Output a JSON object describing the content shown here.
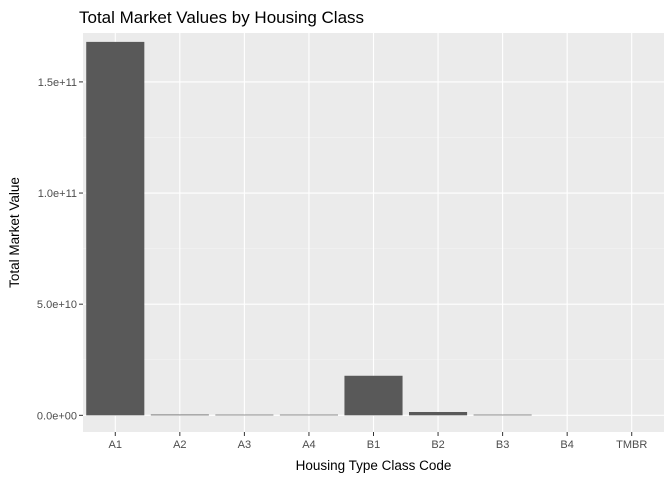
{
  "chart_data": {
    "type": "bar",
    "title": "Total Market Values by Housing Class",
    "xlabel": "Housing Type Class Code",
    "ylabel": "Total Market Value",
    "categories": [
      "A1",
      "A2",
      "A3",
      "A4",
      "B1",
      "B2",
      "B3",
      "B4",
      "TMBR"
    ],
    "values": [
      168000000000,
      350000000,
      300000000,
      300000000,
      17800000000,
      1500000000,
      300000000,
      0,
      0
    ],
    "ylim": [
      -7500000000,
      172000000000
    ],
    "yticks": [
      0,
      50000000000,
      100000000000,
      150000000000
    ],
    "ytick_labels": [
      "0.0e+00",
      "5.0e+10",
      "1.0e+11",
      "1.5e+11"
    ],
    "grid": true,
    "legend": "none",
    "colors": {
      "bar": "#595959",
      "panel": "#ebebeb",
      "grid_major": "#ffffff",
      "grid_minor": "#f5f5f5",
      "tick_text": "#4d4d4d",
      "tick_mark": "#333333"
    }
  }
}
